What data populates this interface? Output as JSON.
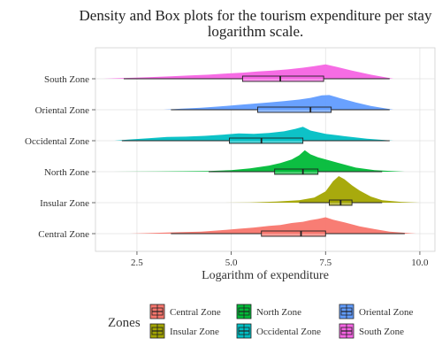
{
  "chart_data": {
    "type": "density-box",
    "title_line1": "Density and Box plots for the tourism expenditure per stay",
    "title_line2": "logarithm scale.",
    "xlabel": "Logarithm of expenditure",
    "ylabel": "",
    "xlim": [
      1.4,
      10.4
    ],
    "xticks": [
      "2.5",
      "5.0",
      "7.5",
      "10.0"
    ],
    "xtick_values": [
      2.5,
      5.0,
      7.5,
      10.0
    ],
    "grid": true,
    "legend_title": "Zones",
    "legend_position": "bottom",
    "series": [
      {
        "name": "Central Zone",
        "color": "#F8766D",
        "box": {
          "whisker_low": 3.4,
          "q1": 5.8,
          "median": 6.85,
          "q3": 7.5,
          "whisker_high": 9.6
        },
        "density_range": [
          2.3,
          9.9
        ],
        "density_points": [
          [
            2.3,
            0.0
          ],
          [
            3.0,
            0.04
          ],
          [
            3.6,
            0.07
          ],
          [
            4.2,
            0.1
          ],
          [
            4.7,
            0.16
          ],
          [
            5.2,
            0.24
          ],
          [
            5.6,
            0.3
          ],
          [
            6.0,
            0.38
          ],
          [
            6.3,
            0.42
          ],
          [
            6.6,
            0.52
          ],
          [
            6.9,
            0.58
          ],
          [
            7.1,
            0.66
          ],
          [
            7.3,
            0.72
          ],
          [
            7.5,
            0.8
          ],
          [
            7.7,
            0.68
          ],
          [
            8.0,
            0.55
          ],
          [
            8.4,
            0.36
          ],
          [
            8.8,
            0.22
          ],
          [
            9.2,
            0.1
          ],
          [
            9.9,
            0.0
          ]
        ]
      },
      {
        "name": "Insular Zone",
        "color": "#A3A500",
        "box": {
          "whisker_low": 6.8,
          "q1": 7.6,
          "median": 7.9,
          "q3": 8.2,
          "whisker_high": 9.0
        },
        "density_range": [
          4.6,
          10.0
        ],
        "density_points": [
          [
            4.6,
            0.0
          ],
          [
            5.5,
            0.01
          ],
          [
            6.2,
            0.05
          ],
          [
            6.8,
            0.12
          ],
          [
            7.2,
            0.25
          ],
          [
            7.5,
            0.55
          ],
          [
            7.7,
            1.05
          ],
          [
            7.85,
            1.3
          ],
          [
            8.0,
            1.15
          ],
          [
            8.2,
            0.85
          ],
          [
            8.4,
            0.6
          ],
          [
            8.7,
            0.3
          ],
          [
            9.0,
            0.12
          ],
          [
            9.5,
            0.04
          ],
          [
            10.0,
            0.0
          ]
        ]
      },
      {
        "name": "North Zone",
        "color": "#00BA38",
        "box": {
          "whisker_low": 4.4,
          "q1": 6.15,
          "median": 6.9,
          "q3": 7.3,
          "whisker_high": 9.0
        },
        "density_range": [
          1.5,
          9.6
        ],
        "density_points": [
          [
            1.5,
            0.0
          ],
          [
            3.0,
            0.01
          ],
          [
            4.4,
            0.03
          ],
          [
            5.0,
            0.08
          ],
          [
            5.5,
            0.16
          ],
          [
            6.0,
            0.3
          ],
          [
            6.3,
            0.42
          ],
          [
            6.6,
            0.6
          ],
          [
            6.8,
            0.8
          ],
          [
            6.95,
            1.05
          ],
          [
            7.1,
            0.85
          ],
          [
            7.3,
            0.7
          ],
          [
            7.6,
            0.55
          ],
          [
            7.9,
            0.4
          ],
          [
            8.3,
            0.2
          ],
          [
            8.8,
            0.08
          ],
          [
            9.6,
            0.0
          ]
        ]
      },
      {
        "name": "Occidental Zone",
        "color": "#00BFC4",
        "box": {
          "whisker_low": 2.1,
          "q1": 4.95,
          "median": 5.8,
          "q3": 6.9,
          "whisker_high": 9.2
        },
        "density_range": [
          1.9,
          9.3
        ],
        "density_points": [
          [
            1.9,
            0.0
          ],
          [
            2.3,
            0.06
          ],
          [
            2.8,
            0.12
          ],
          [
            3.3,
            0.18
          ],
          [
            3.8,
            0.2
          ],
          [
            4.3,
            0.24
          ],
          [
            4.8,
            0.3
          ],
          [
            5.2,
            0.36
          ],
          [
            5.6,
            0.34
          ],
          [
            6.0,
            0.38
          ],
          [
            6.4,
            0.46
          ],
          [
            6.7,
            0.58
          ],
          [
            6.9,
            0.68
          ],
          [
            7.1,
            0.5
          ],
          [
            7.5,
            0.34
          ],
          [
            8.0,
            0.22
          ],
          [
            8.6,
            0.1
          ],
          [
            9.3,
            0.0
          ]
        ]
      },
      {
        "name": "Oriental Zone",
        "color": "#619CFF",
        "box": {
          "whisker_low": 3.4,
          "q1": 5.7,
          "median": 7.1,
          "q3": 7.65,
          "whisker_high": 9.2
        },
        "density_range": [
          3.2,
          9.3
        ],
        "density_points": [
          [
            3.2,
            0.0
          ],
          [
            3.7,
            0.05
          ],
          [
            4.2,
            0.1
          ],
          [
            4.7,
            0.16
          ],
          [
            5.2,
            0.24
          ],
          [
            5.6,
            0.3
          ],
          [
            6.0,
            0.36
          ],
          [
            6.4,
            0.42
          ],
          [
            6.8,
            0.5
          ],
          [
            7.1,
            0.58
          ],
          [
            7.4,
            0.7
          ],
          [
            7.6,
            0.72
          ],
          [
            7.9,
            0.56
          ],
          [
            8.3,
            0.36
          ],
          [
            8.7,
            0.18
          ],
          [
            9.3,
            0.0
          ]
        ]
      },
      {
        "name": "South Zone",
        "color": "#F564E3",
        "box": {
          "whisker_low": 2.15,
          "q1": 5.3,
          "median": 6.3,
          "q3": 7.45,
          "whisker_high": 9.2
        },
        "density_range": [
          1.6,
          9.3
        ],
        "density_points": [
          [
            1.6,
            0.0
          ],
          [
            2.2,
            0.04
          ],
          [
            2.8,
            0.08
          ],
          [
            3.4,
            0.12
          ],
          [
            3.9,
            0.16
          ],
          [
            4.4,
            0.2
          ],
          [
            4.9,
            0.26
          ],
          [
            5.3,
            0.3
          ],
          [
            5.7,
            0.36
          ],
          [
            6.1,
            0.4
          ],
          [
            6.5,
            0.46
          ],
          [
            6.9,
            0.54
          ],
          [
            7.2,
            0.62
          ],
          [
            7.5,
            0.7
          ],
          [
            7.8,
            0.58
          ],
          [
            8.2,
            0.4
          ],
          [
            8.7,
            0.2
          ],
          [
            9.3,
            0.0
          ]
        ]
      }
    ],
    "y_order": [
      "South Zone",
      "Oriental Zone",
      "Occidental Zone",
      "North Zone",
      "Insular Zone",
      "Central Zone"
    ],
    "legend_order": [
      "Central Zone",
      "North Zone",
      "Oriental Zone",
      "Insular Zone",
      "Occidental Zone",
      "South Zone"
    ]
  }
}
